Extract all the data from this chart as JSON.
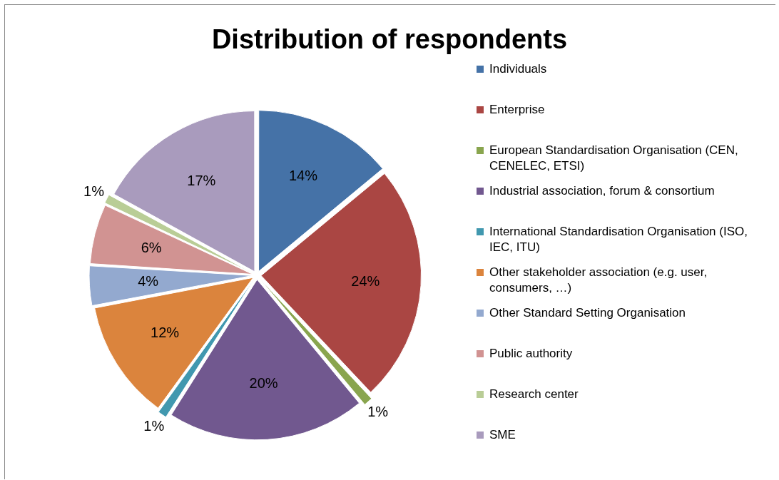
{
  "chart_data": {
    "type": "pie",
    "title": "Distribution of respondents",
    "categories": [
      "Individuals",
      "Enterprise",
      "European Standardisation Organisation (CEN, CENELEC, ETSI)",
      "Industrial association, forum & consortium",
      "International Standardisation Organisation (ISO, IEC, ITU)",
      "Other stakeholder association (e.g. user, consumers, …)",
      "Other Standard Setting Organisation",
      "Public authority",
      "Research center",
      "SME"
    ],
    "values": [
      14,
      24,
      1,
      20,
      1,
      12,
      4,
      6,
      1,
      17
    ],
    "value_labels": [
      "14%",
      "24%",
      "1%",
      "20%",
      "1%",
      "12%",
      "4%",
      "6%",
      "1%",
      "17%"
    ],
    "colors": [
      "#4572a7",
      "#aa4643",
      "#89a54e",
      "#71588f",
      "#4198af",
      "#db843d",
      "#93a9cf",
      "#d19392",
      "#b9cd96",
      "#a99bbd"
    ],
    "legend": "right"
  }
}
